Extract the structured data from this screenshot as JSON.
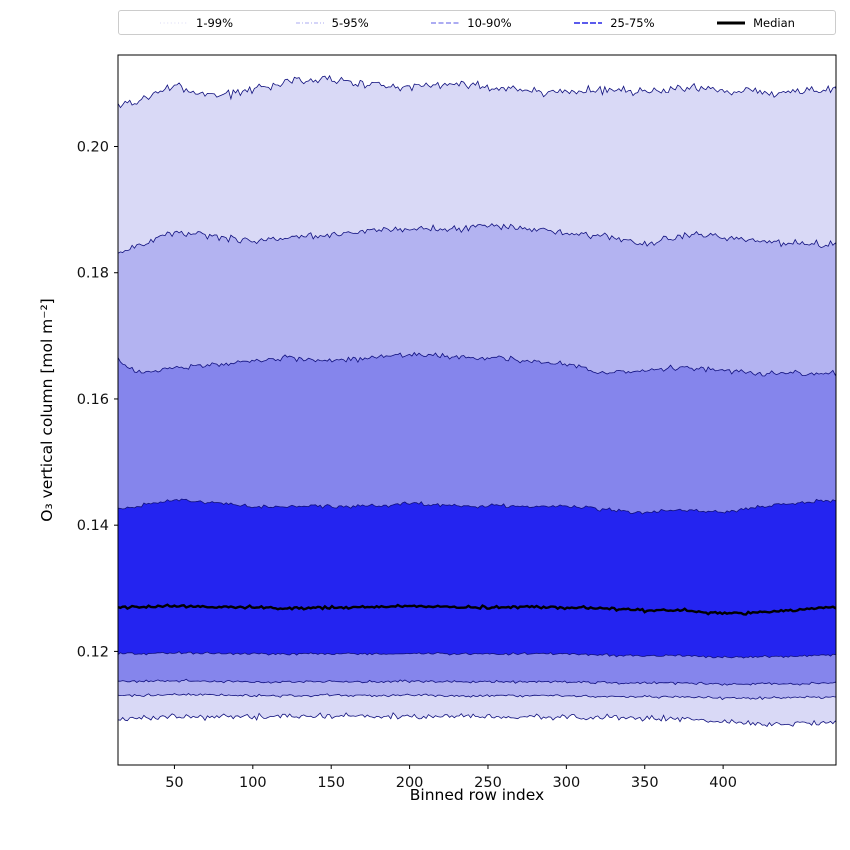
{
  "figure": {
    "background": "#ffffff"
  },
  "chart_data": {
    "type": "area",
    "title": "",
    "xlabel": "Binned row index",
    "ylabel": "O₃ vertical column [mol m⁻²]",
    "legend_position": "top",
    "grid": false,
    "xlim": [
      14,
      472
    ],
    "ylim": [
      0.102,
      0.2145
    ],
    "xticks": [
      50,
      100,
      150,
      200,
      250,
      300,
      350,
      400
    ],
    "yticks": [
      0.12,
      0.14,
      0.16,
      0.18,
      0.2
    ],
    "x": [
      14,
      25,
      50,
      75,
      100,
      125,
      150,
      175,
      200,
      225,
      250,
      275,
      300,
      325,
      350,
      375,
      400,
      425,
      450,
      472
    ],
    "percentiles": {
      "p1": [
        0.1092,
        0.1095,
        0.1097,
        0.1096,
        0.1097,
        0.1098,
        0.1098,
        0.1097,
        0.1098,
        0.1097,
        0.1097,
        0.1096,
        0.1096,
        0.1095,
        0.1094,
        0.1093,
        0.109,
        0.1085,
        0.1086,
        0.1088
      ],
      "p5": [
        0.113,
        0.113,
        0.1132,
        0.1131,
        0.113,
        0.113,
        0.1131,
        0.113,
        0.1131,
        0.113,
        0.113,
        0.113,
        0.113,
        0.1128,
        0.1128,
        0.1128,
        0.1126,
        0.1126,
        0.1127,
        0.1128
      ],
      "p10": [
        0.1153,
        0.1152,
        0.1154,
        0.1153,
        0.1152,
        0.1152,
        0.1153,
        0.1152,
        0.1153,
        0.1152,
        0.1152,
        0.1152,
        0.1152,
        0.115,
        0.115,
        0.115,
        0.1148,
        0.1148,
        0.1149,
        0.115
      ],
      "p25": [
        0.1196,
        0.1196,
        0.1198,
        0.1197,
        0.1196,
        0.1196,
        0.1197,
        0.1196,
        0.1197,
        0.1196,
        0.1196,
        0.1196,
        0.1196,
        0.1194,
        0.1193,
        0.1193,
        0.1191,
        0.1191,
        0.1193,
        0.1194
      ],
      "p50": [
        0.127,
        0.127,
        0.1272,
        0.127,
        0.127,
        0.1268,
        0.127,
        0.127,
        0.1272,
        0.127,
        0.127,
        0.127,
        0.127,
        0.1268,
        0.1265,
        0.1265,
        0.126,
        0.1262,
        0.1266,
        0.127
      ],
      "p75": [
        0.1425,
        0.143,
        0.144,
        0.1436,
        0.143,
        0.143,
        0.143,
        0.143,
        0.1435,
        0.1432,
        0.143,
        0.143,
        0.143,
        0.1425,
        0.142,
        0.1424,
        0.142,
        0.143,
        0.1436,
        0.144
      ],
      "p90": [
        0.1665,
        0.1641,
        0.165,
        0.1655,
        0.166,
        0.1665,
        0.166,
        0.1665,
        0.167,
        0.1667,
        0.1665,
        0.166,
        0.1655,
        0.1642,
        0.1645,
        0.165,
        0.1645,
        0.164,
        0.164,
        0.1641
      ],
      "p95": [
        0.1832,
        0.184,
        0.1866,
        0.1858,
        0.185,
        0.1855,
        0.186,
        0.1866,
        0.187,
        0.1868,
        0.1874,
        0.187,
        0.1864,
        0.1858,
        0.1845,
        0.186,
        0.1856,
        0.185,
        0.1846,
        0.1845
      ],
      "p99": [
        0.2065,
        0.2072,
        0.2095,
        0.208,
        0.209,
        0.2102,
        0.2105,
        0.2098,
        0.2093,
        0.21,
        0.2094,
        0.209,
        0.2086,
        0.2092,
        0.2086,
        0.2094,
        0.209,
        0.2085,
        0.2088,
        0.209
      ]
    },
    "bands": [
      {
        "name": "1-99",
        "label": "1-99%",
        "lower": "p1",
        "upper": "p99",
        "fill": "#d9d9f6"
      },
      {
        "name": "5-95",
        "label": "5-95%",
        "lower": "p5",
        "upper": "p95",
        "fill": "#b3b3f1"
      },
      {
        "name": "10-90",
        "label": "10-90%",
        "lower": "p10",
        "upper": "p90",
        "fill": "#8585ec"
      },
      {
        "name": "25-75",
        "label": "25-75%",
        "lower": "p25",
        "upper": "p75",
        "fill": "#2424f0"
      }
    ],
    "median": {
      "label": "Median",
      "series": "p50",
      "color": "#000000"
    },
    "edge_color": "#10107e",
    "legend": [
      {
        "label": "1-99%",
        "color": "#e2e2f8",
        "dash": "1,2.6",
        "width": 1.3
      },
      {
        "label": "5-95%",
        "color": "#bcbcf3",
        "dash": "4,2,1,2",
        "width": 1.3
      },
      {
        "label": "10-90%",
        "color": "#9090ee",
        "dash": "5,2.5",
        "width": 1.4
      },
      {
        "label": "25-75%",
        "color": "#4444e9",
        "dash": "6,2",
        "width": 1.8
      },
      {
        "label": "Median",
        "color": "#000000",
        "dash": "",
        "width": 3
      }
    ]
  }
}
